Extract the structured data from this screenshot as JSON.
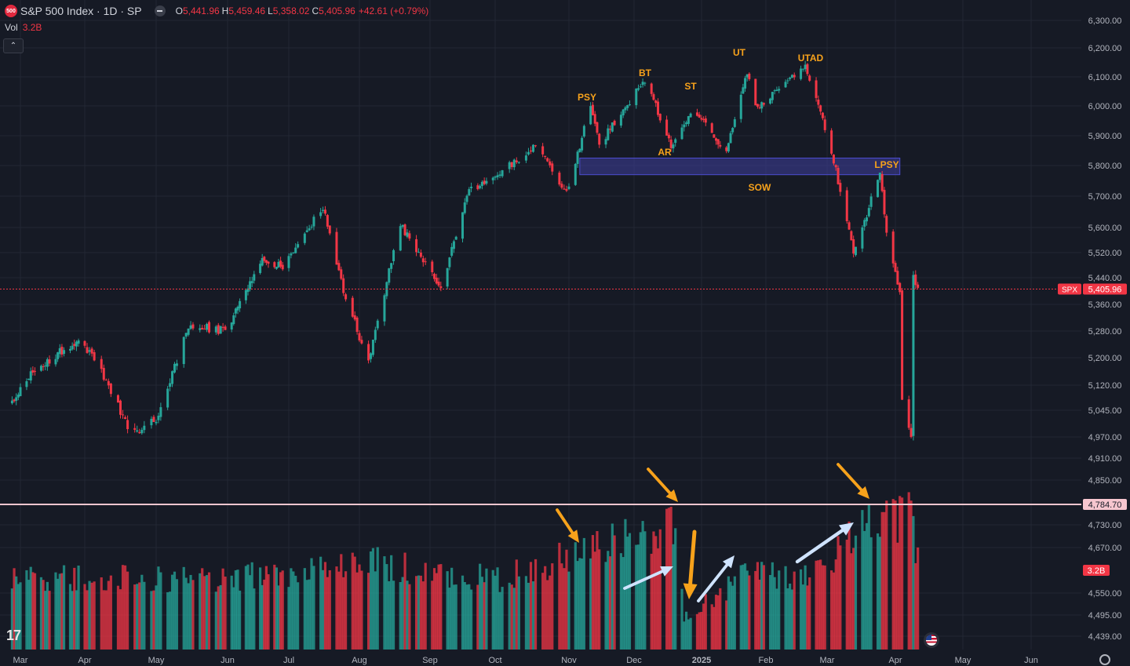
{
  "header": {
    "logo_text": "500",
    "title": "S&P 500 Index · 1D · SP",
    "open_label": "O",
    "open": "5,441.96",
    "high_label": "H",
    "high": "5,459.46",
    "low_label": "L",
    "low": "5,358.02",
    "close_label": "C",
    "close": "5,405.96",
    "change": "+42.61 (+0.79%)",
    "volume_label": "Vol",
    "volume_value": "3.2B"
  },
  "colors": {
    "background": "#161a25",
    "up": "#26a69a",
    "down": "#f23645",
    "zone": "#3f3f9e",
    "wyckoff_label": "#f7a21b",
    "support_line": "#f6c6cf"
  },
  "chart_data": {
    "type": "candlestick",
    "symbol": "SPX",
    "price_axis_ticks": [
      "6,300.00",
      "6,200.00",
      "6,100.00",
      "6,000.00",
      "5,900.00",
      "5,800.00",
      "5,700.00",
      "5,600.00",
      "5,520.00",
      "5,440.00",
      "5,360.00",
      "5,280.00",
      "5,200.00",
      "5,120.00",
      "5,045.00",
      "4,970.00",
      "4,910.00",
      "4,850.00",
      "4,730.00",
      "4,670.00",
      "4,550.00",
      "4,495.00",
      "4,439.00"
    ],
    "time_axis_labels": [
      "Mar",
      "Apr",
      "May",
      "Jun",
      "Jul",
      "Aug",
      "Sep",
      "Oct",
      "Nov",
      "Dec",
      "2025",
      "Feb",
      "Mar",
      "Apr",
      "May",
      "Jun"
    ],
    "last_price": "5,405.96",
    "last_price_tag": "SPX",
    "horizontal_line": {
      "value": 4784.7,
      "label": "4,784.70"
    },
    "volume_tag": "3.2B",
    "resistance_zone": {
      "from": 5770,
      "to": 5825,
      "start": "2024-11-06",
      "end": "2025-04-03"
    },
    "wyckoff_labels": [
      "PSY",
      "BT",
      "ST",
      "AR",
      "UT",
      "UTAD",
      "LPSY",
      "SOW"
    ],
    "price_path": [
      [
        "2024-02-26",
        5070
      ],
      [
        "2024-03-07",
        5160
      ],
      [
        "2024-03-28",
        5250
      ],
      [
        "2024-04-04",
        5215
      ],
      [
        "2024-04-19",
        5000
      ],
      [
        "2024-04-25",
        4990
      ],
      [
        "2024-05-02",
        5030
      ],
      [
        "2024-05-15",
        5300
      ],
      [
        "2024-05-31",
        5280
      ],
      [
        "2024-06-18",
        5490
      ],
      [
        "2024-06-28",
        5475
      ],
      [
        "2024-07-16",
        5665
      ],
      [
        "2024-07-25",
        5400
      ],
      [
        "2024-08-05",
        5185
      ],
      [
        "2024-08-19",
        5610
      ],
      [
        "2024-09-06",
        5410
      ],
      [
        "2024-09-19",
        5715
      ],
      [
        "2024-09-30",
        5760
      ],
      [
        "2024-10-18",
        5865
      ],
      [
        "2024-10-31",
        5710
      ],
      [
        "2024-11-11",
        6000
      ],
      [
        "2024-11-15",
        5870
      ],
      [
        "2024-12-06",
        6090
      ],
      [
        "2024-12-18",
        5870
      ],
      [
        "2024-12-27",
        5970
      ],
      [
        "2025-01-03",
        5945
      ],
      [
        "2025-01-13",
        5840
      ],
      [
        "2025-01-23",
        6120
      ],
      [
        "2025-01-27",
        5990
      ],
      [
        "2025-02-19",
        6140
      ],
      [
        "2025-03-03",
        5850
      ],
      [
        "2025-03-13",
        5520
      ],
      [
        "2025-03-25",
        5770
      ],
      [
        "2025-03-28",
        5580
      ],
      [
        "2025-04-03",
        5400
      ],
      [
        "2025-04-04",
        5070
      ],
      [
        "2025-04-08",
        4980
      ],
      [
        "2025-04-09",
        5450
      ],
      [
        "2025-04-11",
        5406
      ]
    ],
    "volume_path": [
      [
        "2024-03-01",
        2.5
      ],
      [
        "2024-06-01",
        2.4
      ],
      [
        "2024-08-05",
        3.0
      ],
      [
        "2024-10-01",
        2.4
      ],
      [
        "2024-11-06",
        3.3
      ],
      [
        "2024-12-20",
        4.3
      ],
      [
        "2024-12-24",
        1.1
      ],
      [
        "2025-01-21",
        2.5
      ],
      [
        "2025-02-20",
        2.6
      ],
      [
        "2025-03-21",
        4.3
      ],
      [
        "2025-04-04",
        4.6
      ],
      [
        "2025-04-07",
        5.0
      ],
      [
        "2025-04-11",
        3.2
      ]
    ]
  }
}
